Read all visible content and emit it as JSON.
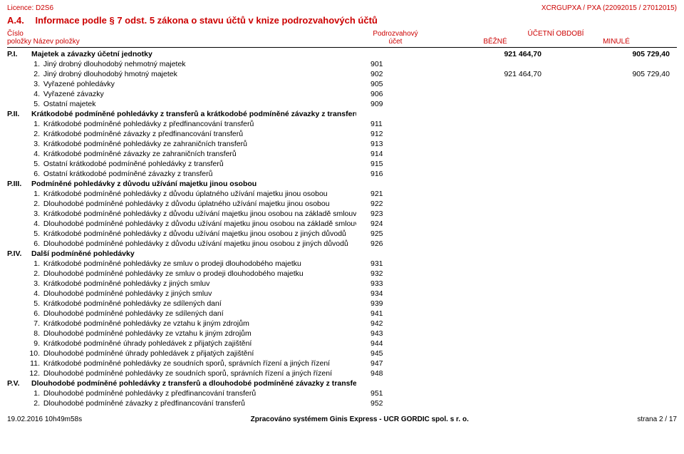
{
  "header": {
    "licence": "Licence: D2S6",
    "docref": "XCRGUPXA / PXA (22092015 / 27012015)"
  },
  "section": {
    "code": "A.4.",
    "title": "Informace podle § 7 odst. 5 zákona o stavu účtů v knize podrozvahových účtů"
  },
  "tableHeader": {
    "left1": "Číslo",
    "left2": "položky   Název položky",
    "acct1": "Podrozvahový",
    "acct2": "účet",
    "period": "ÚČETNÍ OBDOBÍ",
    "col1": "BĚŽNÉ",
    "col2": "MINULÉ"
  },
  "groups": [
    {
      "code": "P.I.",
      "name": "Majetek a závazky účetní jednotky",
      "v1": "921 464,70",
      "v2": "905 729,40",
      "rows": [
        {
          "n": "1.",
          "label": "Jiný drobný dlouhodobý nehmotný majetek",
          "acct": "901"
        },
        {
          "n": "2.",
          "label": "Jiný drobný dlouhodobý hmotný majetek",
          "acct": "902",
          "v1": "921 464,70",
          "v2": "905 729,40"
        },
        {
          "n": "3.",
          "label": "Vyřazené pohledávky",
          "acct": "905"
        },
        {
          "n": "4.",
          "label": "Vyřazené závazky",
          "acct": "906"
        },
        {
          "n": "5.",
          "label": "Ostatní majetek",
          "acct": "909"
        }
      ]
    },
    {
      "code": "P.II.",
      "name": "Krátkodobé podmíněné pohledávky z transferů a krátkodobé podmíněné závazky z transferů",
      "rows": [
        {
          "n": "1.",
          "label": "Krátkodobé podmíněné pohledávky z předfinancování transferů",
          "acct": "911"
        },
        {
          "n": "2.",
          "label": "Krátkodobé podmíněné závazky z předfinancování transferů",
          "acct": "912"
        },
        {
          "n": "3.",
          "label": "Krátkodobé podmíněné pohledávky ze zahraničních transferů",
          "acct": "913"
        },
        {
          "n": "4.",
          "label": "Krátkodobé podmíněné závazky ze zahraničních transferů",
          "acct": "914"
        },
        {
          "n": "5.",
          "label": "Ostatní krátkodobé podmíněné pohledávky z transferů",
          "acct": "915"
        },
        {
          "n": "6.",
          "label": "Ostatní krátkodobé podmíněné závazky z transferů",
          "acct": "916"
        }
      ]
    },
    {
      "code": "P.III.",
      "name": "Podmíněné pohledávky z důvodu užívání majetku jinou osobou",
      "rows": [
        {
          "n": "1.",
          "label": "Krátkodobé podmíněné pohledávky z důvodu úplatného užívání majetku jinou osobou",
          "acct": "921"
        },
        {
          "n": "2.",
          "label": "Dlouhodobé podmíněné pohledávky z důvodu úplatného užívání majetku jinou osobou",
          "acct": "922"
        },
        {
          "n": "3.",
          "label": "Krátkodobé podmíněné pohledávky z důvodu užívání majetku jinou osobou na základě smlouvy o výpůjčce",
          "acct": "923"
        },
        {
          "n": "4.",
          "label": "Dlouhodobé podmíněné pohledávky z důvodu užívání majetku jinou osobou na základě smlouvy o výpůjčce",
          "acct": "924"
        },
        {
          "n": "5.",
          "label": "Krátkodobé podmíněné pohledávky z důvodu užívání majetku jinou osobou z jiných důvodů",
          "acct": "925"
        },
        {
          "n": "6.",
          "label": "Dlouhodobé podmíněné pohledávky z důvodu užívání majetku jinou osobou z jiných důvodů",
          "acct": "926"
        }
      ]
    },
    {
      "code": "P.IV.",
      "name": "Další podmíněné pohledávky",
      "rows": [
        {
          "n": "1.",
          "label": "Krátkodobé podmíněné pohledávky ze smluv o prodeji dlouhodobého majetku",
          "acct": "931"
        },
        {
          "n": "2.",
          "label": "Dlouhodobé podmíněné pohledávky ze smluv o prodeji dlouhodobého majetku",
          "acct": "932"
        },
        {
          "n": "3.",
          "label": "Krátkodobé podmíněné pohledávky z jiných smluv",
          "acct": "933"
        },
        {
          "n": "4.",
          "label": "Dlouhodobé podmíněné pohledávky z jiných smluv",
          "acct": "934"
        },
        {
          "n": "5.",
          "label": "Krátkodobé podmíněné pohledávky ze sdílených daní",
          "acct": "939"
        },
        {
          "n": "6.",
          "label": "Dlouhodobé podmíněné pohledávky ze sdílených daní",
          "acct": "941"
        },
        {
          "n": "7.",
          "label": "Krátkodobé podmíněné pohledávky ze vztahu k jiným zdrojům",
          "acct": "942"
        },
        {
          "n": "8.",
          "label": "Dlouhodobé podmíněné pohledávky ze vztahu k jiným zdrojům",
          "acct": "943"
        },
        {
          "n": "9.",
          "label": "Krátkodobé podmíněné úhrady pohledávek z přijatých zajištění",
          "acct": "944"
        },
        {
          "n": "10.",
          "label": "Dlouhodobé podmíněné úhrady pohledávek z přijatých zajištění",
          "acct": "945"
        },
        {
          "n": "11.",
          "label": "Krátkodobé podmíněné pohledávky ze soudních sporů, správních řízení a jiných řízení",
          "acct": "947"
        },
        {
          "n": "12.",
          "label": "Dlouhodobé podmíněné pohledávky ze soudních sporů, správních řízení a jiných řízení",
          "acct": "948"
        }
      ]
    },
    {
      "code": "P.V.",
      "name": "Dlouhodobé podmíněné pohledávky z transferů a dlouhodobé podmíněné závazky z transferů",
      "rows": [
        {
          "n": "1.",
          "label": "Dlouhodobé podmíněné pohledávky z předfinancování transferů",
          "acct": "951"
        },
        {
          "n": "2.",
          "label": "Dlouhodobé podmíněné závazky z předfinancování transferů",
          "acct": "952"
        }
      ]
    }
  ],
  "footer": {
    "left": "19.02.2016 10h49m58s",
    "mid": "Zpracováno systémem Ginis Express - UCR GORDIC spol. s r. o.",
    "right": "strana 2 / 17"
  }
}
